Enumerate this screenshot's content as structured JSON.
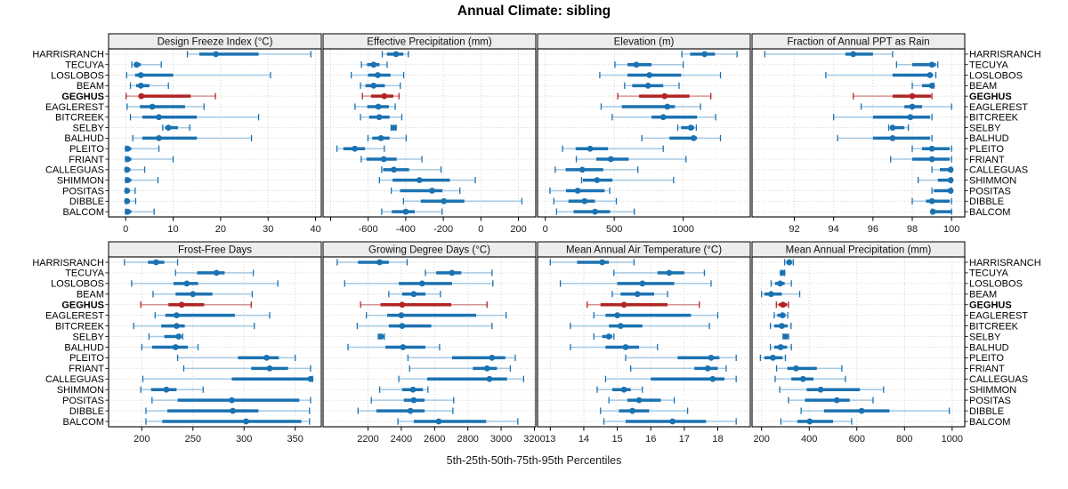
{
  "title": "Annual Climate: sibling",
  "xlabel": "5th-25th-50th-75th-95th Percentiles",
  "colors": {
    "series": "#1b72b1",
    "series_light": "#a6c9e3",
    "highlight": "#b22424",
    "highlight_light": "#d69595",
    "strip_bg": "#ededed",
    "grid": "#c9c9c9",
    "panel_border": "#000000",
    "tick_text": "#1a1a1a",
    "label_text": "#000000"
  },
  "sites": [
    "HARRISRANCH",
    "TECUYA",
    "LOSLOBOS",
    "BEAM",
    "GEGHUS",
    "EAGLEREST",
    "BITCREEK",
    "SELBY",
    "BALHUD",
    "PLEITO",
    "FRIANT",
    "CALLEGUAS",
    "SHIMMON",
    "POSITAS",
    "DIBBLE",
    "BALCOM"
  ],
  "highlight_site": "GEGHUS",
  "chart_data": {
    "type": "dotplot-percentiles",
    "percentile_levels": [
      5,
      25,
      50,
      75,
      95
    ],
    "rows_order": "top-to-bottom",
    "panels": [
      {
        "title": "Design Freeze Index (°C)",
        "row": 0,
        "col": 0,
        "xlim": [
          -3.6,
          41.2
        ],
        "ticks": [
          {
            "v": 0,
            "label": "0"
          },
          {
            "v": 10,
            "label": "10"
          },
          {
            "v": 20,
            "label": "20"
          },
          {
            "v": 30,
            "label": "30"
          },
          {
            "v": 40,
            "label": "40"
          }
        ],
        "values": [
          [
            13,
            15.5,
            19,
            28,
            39
          ],
          [
            1.3,
            1.8,
            2.3,
            3.2,
            7.5
          ],
          [
            0.2,
            2,
            3.2,
            10,
            30.5
          ],
          [
            1,
            2.2,
            3.2,
            5,
            9
          ],
          [
            0.1,
            2.7,
            3.3,
            13.7,
            18.9
          ],
          [
            0.3,
            3,
            5.6,
            12.5,
            16.5
          ],
          [
            1,
            3.5,
            7,
            15,
            28
          ],
          [
            7.8,
            8.3,
            9,
            11,
            13.5
          ],
          [
            1.5,
            3.5,
            7,
            15,
            26.5
          ],
          [
            0,
            0.1,
            0.4,
            1.2,
            7
          ],
          [
            0,
            0.1,
            0.4,
            1.2,
            10
          ],
          [
            0,
            0.1,
            0.3,
            1,
            4
          ],
          [
            0,
            0.1,
            0.4,
            1.2,
            6.8
          ],
          [
            0,
            0.1,
            0.3,
            0.8,
            2
          ],
          [
            0,
            0.1,
            0.3,
            0.8,
            2.1
          ],
          [
            0,
            0.1,
            0.4,
            1.2,
            6
          ]
        ]
      },
      {
        "title": "Effective Precipitation (mm)",
        "row": 0,
        "col": 1,
        "xlim": [
          -840,
          292
        ],
        "ticks": [
          {
            "v": -800,
            "label": ""
          },
          {
            "v": -600,
            "label": "-600"
          },
          {
            "v": -400,
            "label": "-400"
          },
          {
            "v": -200,
            "label": "-200"
          },
          {
            "v": 0,
            "label": "0"
          },
          {
            "v": 200,
            "label": "200"
          }
        ],
        "values": [
          [
            -525,
            -500,
            -452,
            -413,
            -386
          ],
          [
            -636,
            -606,
            -571,
            -540,
            -499
          ],
          [
            -690,
            -601,
            -549,
            -481,
            -411
          ],
          [
            -641,
            -614,
            -571,
            -511,
            -429
          ],
          [
            -631,
            -585,
            -514,
            -466,
            -436
          ],
          [
            -670,
            -605,
            -546,
            -490,
            -456
          ],
          [
            -641,
            -595,
            -541,
            -486,
            -421
          ],
          [
            -478,
            -471,
            -464,
            -458,
            -451
          ],
          [
            -601,
            -578,
            -532,
            -486,
            -398
          ],
          [
            -766,
            -732,
            -671,
            -617,
            -514
          ],
          [
            -637,
            -609,
            -517,
            -448,
            -314
          ],
          [
            -528,
            -520,
            -463,
            -382,
            -212
          ],
          [
            -540,
            -470,
            -327,
            -165,
            -30
          ],
          [
            -477,
            -430,
            -260,
            -205,
            -112
          ],
          [
            -412,
            -320,
            -197,
            -88,
            218
          ],
          [
            -528,
            -474,
            -400,
            -352,
            -207
          ]
        ]
      },
      {
        "title": "Elevation (m)",
        "row": 0,
        "col": 2,
        "xlim": [
          -56,
          1486
        ],
        "ticks": [
          {
            "v": 0,
            "label": "0"
          },
          {
            "v": 500,
            "label": "500"
          },
          {
            "v": 1000,
            "label": "1000"
          }
        ],
        "values": [
          [
            990,
            1050,
            1155,
            1230,
            1390
          ],
          [
            505,
            595,
            660,
            770,
            1000
          ],
          [
            395,
            595,
            755,
            985,
            1270
          ],
          [
            575,
            630,
            745,
            855,
            970
          ],
          [
            525,
            680,
            865,
            1045,
            1200
          ],
          [
            405,
            555,
            885,
            940,
            1125
          ],
          [
            485,
            770,
            855,
            1100,
            1235
          ],
          [
            960,
            985,
            1055,
            1080,
            1095
          ],
          [
            700,
            900,
            1075,
            1100,
            1270
          ],
          [
            125,
            220,
            325,
            455,
            855
          ],
          [
            225,
            370,
            475,
            605,
            1020
          ],
          [
            72,
            148,
            268,
            420,
            671
          ],
          [
            263,
            272,
            375,
            487,
            930
          ],
          [
            34,
            150,
            235,
            430,
            467
          ],
          [
            62,
            168,
            285,
            360,
            515
          ],
          [
            82,
            205,
            360,
            470,
            645
          ]
        ]
      },
      {
        "title": "Fraction of Annual PPT as Rain",
        "row": 0,
        "col": 3,
        "xlim": [
          89.85,
          100.67
        ],
        "ticks": [
          {
            "v": 92,
            "label": "92"
          },
          {
            "v": 94,
            "label": "94"
          },
          {
            "v": 96,
            "label": "96"
          },
          {
            "v": 98,
            "label": "98"
          },
          {
            "v": 100,
            "label": "100"
          }
        ],
        "values": [
          [
            90.5,
            94.6,
            95.0,
            96.0,
            97.0
          ],
          [
            97.2,
            98.0,
            99.0,
            99.2,
            99.3
          ],
          [
            93.6,
            97.0,
            98.9,
            99.0,
            99.2
          ],
          [
            98.0,
            98.5,
            99.0,
            99.05,
            99.1
          ],
          [
            95.0,
            97.0,
            98.0,
            98.95,
            99.0
          ],
          [
            95.4,
            97.6,
            98.0,
            98.5,
            100.0
          ],
          [
            94.0,
            96.0,
            97.9,
            98.9,
            99.0
          ],
          [
            96.8,
            96.9,
            97.0,
            97.6,
            97.8
          ],
          [
            94.2,
            96.0,
            97.0,
            98.9,
            99.0
          ],
          [
            98.0,
            98.5,
            99.0,
            99.9,
            100.0
          ],
          [
            96.9,
            98.0,
            99.0,
            99.9,
            100.0
          ],
          [
            99.0,
            99.4,
            99.95,
            100.0,
            100.0
          ],
          [
            98.3,
            99.3,
            99.95,
            100.0,
            100.0
          ],
          [
            99.0,
            99.1,
            99.95,
            100.0,
            100.0
          ],
          [
            98.0,
            98.7,
            99.0,
            99.9,
            100.0
          ],
          [
            99.0,
            99.0,
            99.05,
            100.0,
            100.0
          ]
        ]
      },
      {
        "title": "Frost-Free Days",
        "row": 1,
        "col": 0,
        "xlim": [
          167.5,
          375.5
        ],
        "ticks": [
          {
            "v": 200,
            "label": "200"
          },
          {
            "v": 250,
            "label": "250"
          },
          {
            "v": 300,
            "label": "300"
          },
          {
            "v": 350,
            "label": "350"
          }
        ],
        "values": [
          [
            183,
            206,
            214,
            222,
            235
          ],
          [
            233,
            254,
            273,
            281,
            309
          ],
          [
            190,
            231,
            244,
            255,
            333
          ],
          [
            211,
            233,
            250,
            269,
            308
          ],
          [
            199,
            226,
            239,
            261,
            307
          ],
          [
            213,
            223,
            234,
            291,
            325
          ],
          [
            192,
            219,
            234,
            242,
            310
          ],
          [
            207,
            222,
            236,
            239,
            240
          ],
          [
            200,
            210,
            233,
            245,
            255
          ],
          [
            235,
            294,
            322,
            334,
            350
          ],
          [
            241,
            307,
            325,
            343,
            365
          ],
          [
            201,
            288,
            365,
            366,
            367
          ],
          [
            199,
            209,
            224,
            234,
            260
          ],
          [
            210,
            235,
            288,
            354,
            365
          ],
          [
            204,
            225,
            289,
            314,
            364
          ],
          [
            204,
            220,
            302,
            356,
            364
          ]
        ]
      },
      {
        "title": "Growing Degree Days (°C)",
        "row": 1,
        "col": 1,
        "xlim": [
          1930,
          3208
        ],
        "ticks": [
          {
            "v": 2200,
            "label": "2200"
          },
          {
            "v": 2400,
            "label": "2400"
          },
          {
            "v": 2600,
            "label": "2600"
          },
          {
            "v": 2800,
            "label": "2800"
          },
          {
            "v": 3000,
            "label": "3000"
          },
          {
            "v": 3200,
            "label": "3200"
          }
        ],
        "values": [
          [
            2015,
            2140,
            2270,
            2325,
            2435
          ],
          [
            2545,
            2610,
            2705,
            2760,
            2945
          ],
          [
            2060,
            2385,
            2525,
            2705,
            2950
          ],
          [
            2325,
            2405,
            2475,
            2545,
            2635
          ],
          [
            2155,
            2275,
            2405,
            2700,
            2915
          ],
          [
            2190,
            2315,
            2400,
            2850,
            3030
          ],
          [
            2135,
            2325,
            2405,
            2580,
            2945
          ],
          [
            2262,
            2270,
            2278,
            2288,
            2298
          ],
          [
            2080,
            2305,
            2410,
            2545,
            2630
          ],
          [
            2440,
            2705,
            2945,
            3025,
            3085
          ],
          [
            2450,
            2830,
            2915,
            2975,
            3055
          ],
          [
            2385,
            2555,
            2930,
            3035,
            3135
          ],
          [
            2270,
            2405,
            2470,
            2530,
            2560
          ],
          [
            2220,
            2415,
            2475,
            2540,
            2715
          ],
          [
            2140,
            2250,
            2455,
            2540,
            2710
          ],
          [
            2380,
            2475,
            2625,
            2910,
            3100
          ]
        ]
      },
      {
        "title": "Mean Annual Air Temperature (°C)",
        "row": 1,
        "col": 2,
        "xlim": [
          12.62,
          18.97
        ],
        "ticks": [
          {
            "v": 13,
            "label": "13"
          },
          {
            "v": 14,
            "label": "14"
          },
          {
            "v": 15,
            "label": "15"
          },
          {
            "v": 16,
            "label": "16"
          },
          {
            "v": 17,
            "label": "17"
          },
          {
            "v": 18,
            "label": "18"
          }
        ],
        "values": [
          [
            13.0,
            13.8,
            14.55,
            14.75,
            15.5
          ],
          [
            14.9,
            16.2,
            16.55,
            17.0,
            17.6
          ],
          [
            13.3,
            15.0,
            15.75,
            16.7,
            17.8
          ],
          [
            14.85,
            15.1,
            15.6,
            16.1,
            16.5
          ],
          [
            14.1,
            14.5,
            15.2,
            16.5,
            17.45
          ],
          [
            14.3,
            14.65,
            15.0,
            17.2,
            18.0
          ],
          [
            13.6,
            14.75,
            15.1,
            15.75,
            17.75
          ],
          [
            14.3,
            14.55,
            14.75,
            14.85,
            14.9
          ],
          [
            13.6,
            14.65,
            15.25,
            15.65,
            16.2
          ],
          [
            15.25,
            16.8,
            17.8,
            18.05,
            18.55
          ],
          [
            15.4,
            17.3,
            17.7,
            18.0,
            18.25
          ],
          [
            14.65,
            16.0,
            17.85,
            18.2,
            18.55
          ],
          [
            14.4,
            14.85,
            15.2,
            15.4,
            15.75
          ],
          [
            14.75,
            15.3,
            15.65,
            16.3,
            16.7
          ],
          [
            14.5,
            15.05,
            15.45,
            15.95,
            17.1
          ],
          [
            14.6,
            15.25,
            16.65,
            17.65,
            18.55
          ]
        ]
      },
      {
        "title": "Mean Annual Precipitation (mm)",
        "row": 1,
        "col": 3,
        "xlim": [
          160,
          1053
        ],
        "ticks": [
          {
            "v": 200,
            "label": "200"
          },
          {
            "v": 400,
            "label": "400"
          },
          {
            "v": 600,
            "label": "600"
          },
          {
            "v": 800,
            "label": "800"
          },
          {
            "v": 1000,
            "label": "1000"
          }
        ],
        "values": [
          [
            297,
            305,
            316,
            326,
            333
          ],
          [
            280,
            284,
            288,
            293,
            297
          ],
          [
            240,
            257,
            278,
            297,
            325
          ],
          [
            200,
            212,
            240,
            285,
            360
          ],
          [
            262,
            272,
            290,
            307,
            313
          ],
          [
            253,
            266,
            288,
            301,
            310
          ],
          [
            237,
            253,
            285,
            309,
            324
          ],
          [
            290,
            296,
            301,
            307,
            313
          ],
          [
            237,
            253,
            280,
            307,
            325
          ],
          [
            195,
            212,
            248,
            288,
            300
          ],
          [
            263,
            308,
            345,
            432,
            537
          ],
          [
            257,
            325,
            374,
            418,
            552
          ],
          [
            276,
            389,
            448,
            613,
            712
          ],
          [
            313,
            382,
            516,
            570,
            668
          ],
          [
            366,
            462,
            620,
            737,
            988
          ],
          [
            281,
            350,
            402,
            500,
            578
          ]
        ]
      }
    ]
  }
}
